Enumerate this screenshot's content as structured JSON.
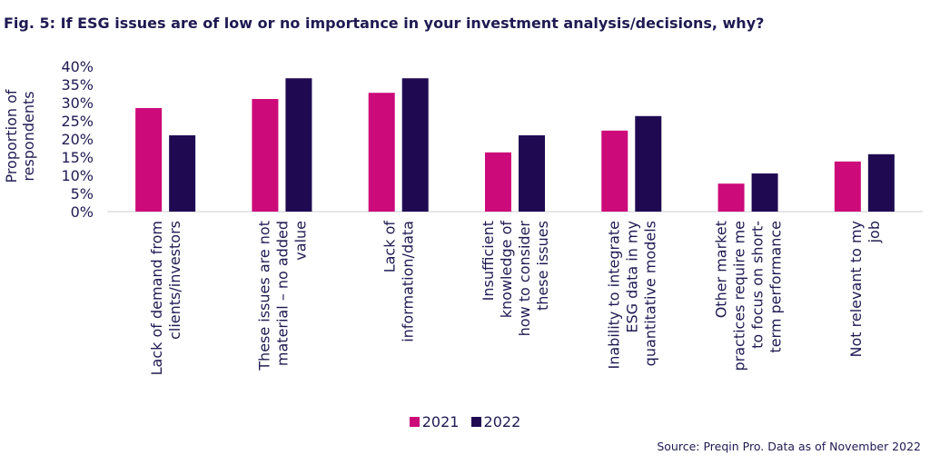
{
  "chart_data": {
    "type": "bar",
    "title": "Fig. 5: If ESG issues are of low or no importance in your investment analysis/decisions, why?",
    "ylabel": [
      "Proportion of",
      "respondents"
    ],
    "xlabel": "",
    "ylim": [
      0,
      40
    ],
    "yticks": [
      "0%",
      "5%",
      "10%",
      "15%",
      "20%",
      "25%",
      "30%",
      "35%",
      "40%"
    ],
    "categories": [
      [
        "Lack of demand from",
        "clients/investors"
      ],
      [
        "These issues are not",
        "material – no added",
        "value"
      ],
      [
        "Lack of",
        "information/data"
      ],
      [
        "Insufficient",
        "knowledge of",
        "how to consider",
        "these issues"
      ],
      [
        "Inability to integrate",
        "ESG data in my",
        "quantitative models"
      ],
      [
        "Other market",
        "practices require me",
        "to focus on short-",
        "term performance"
      ],
      [
        "Not relevant to my",
        "job"
      ]
    ],
    "series": [
      {
        "name": "2021",
        "color": "#cc0a7a",
        "values": [
          28.5,
          31,
          32.7,
          16.3,
          22.3,
          7.7,
          13.8
        ]
      },
      {
        "name": "2022",
        "color": "#1f0a52",
        "values": [
          21,
          36.7,
          36.7,
          21,
          26.3,
          10.5,
          15.8
        ]
      }
    ],
    "legend_position": "bottom",
    "source": "Source: Preqin Pro. Data as of November 2022"
  }
}
